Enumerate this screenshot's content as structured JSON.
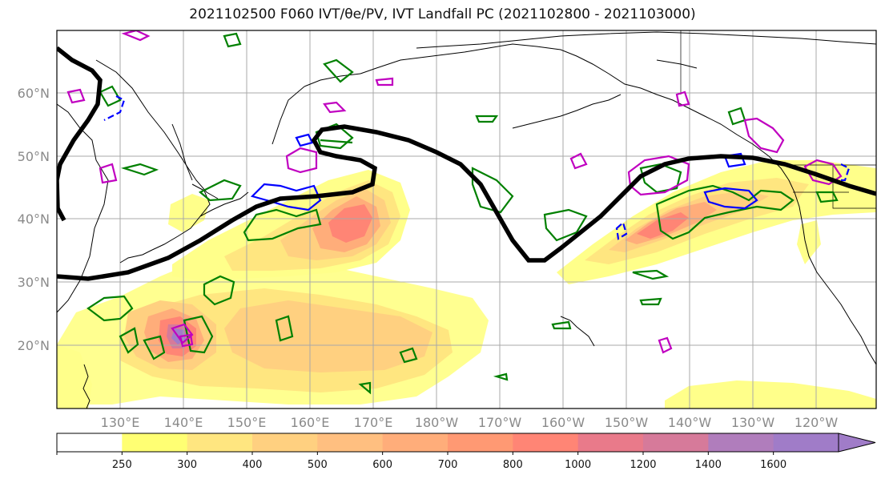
{
  "title": "2021102500 F060 IVT/θe/PV, IVT Landfall PC (2021102800 - 2021103000)",
  "map": {
    "lon_labels": [
      "130°E",
      "140°E",
      "150°E",
      "160°E",
      "170°E",
      "180°W",
      "170°W",
      "160°W",
      "150°W",
      "140°W",
      "130°W",
      "120°W"
    ],
    "lat_labels": [
      "60°N",
      "50°N",
      "40°N",
      "30°N",
      "20°N"
    ],
    "grid": true,
    "projection": "PlateCarree",
    "extent_lon": [
      120,
      250
    ],
    "extent_lat": [
      10,
      70
    ]
  },
  "colorbar": {
    "levels": [
      "250",
      "300",
      "400",
      "500",
      "600",
      "700",
      "800",
      "1000",
      "1200",
      "1400",
      "1600"
    ],
    "colors": [
      "#ffffff",
      "#ffff73",
      "#ffe680",
      "#ffd080",
      "#ffbf80",
      "#ffad7a",
      "#ff9973",
      "#ff8575",
      "#e97a8a",
      "#d67a9a",
      "#b07dbc",
      "#a07cc8"
    ],
    "extend": "max"
  },
  "legend_colors": {
    "trough_line": "#000000",
    "theta_e": "#008000",
    "pv_positive": "#0000ff",
    "pv_magenta": "#c000c0"
  }
}
